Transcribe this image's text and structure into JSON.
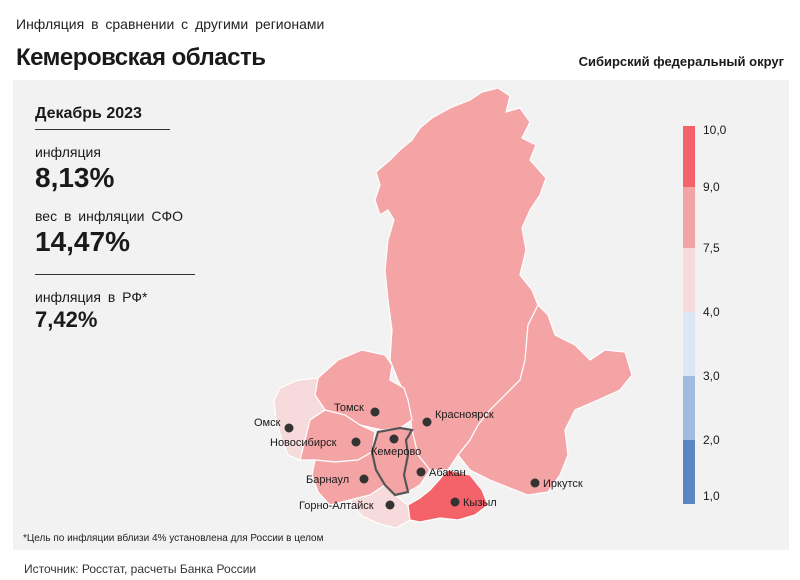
{
  "header": {
    "subtitle": "Инфляция  в сравнении  с другими  регионами",
    "title": "Кемеровская область",
    "district": "Сибирский федеральный округ"
  },
  "stats": {
    "period": "Декабрь 2023",
    "inflation_label": "инфляция",
    "inflation_value": "8,13%",
    "weight_label": "вес в инфляции  СФО",
    "weight_value": "14,47%",
    "rf_label": "инфляция  в РФ*",
    "rf_value": "7,42%"
  },
  "legend": {
    "ticks": [
      "10,0",
      "9,0",
      "7,5",
      "4,0",
      "3,0",
      "2,0",
      "1,0"
    ],
    "colors": [
      "#f4626a",
      "#f5a4a6",
      "#f7dadc",
      "#dde6f4",
      "#9fbbe0",
      "#5b86c2"
    ]
  },
  "cities": {
    "omsk": "Омск",
    "tomsk": "Томск",
    "novosibirsk": "Новосибирск",
    "kemerovo": "Кемерово",
    "krasnoyarsk": "Красноярск",
    "abakan": "Абакан",
    "barnaul": "Барнаул",
    "gorno_altaysk": "Горно-Алтайск",
    "kyzyl": "Кызыл",
    "irkutsk": "Иркутск"
  },
  "regions": {
    "krasnoyarsk_krai": "#f5a4a6",
    "irkutsk_oblast": "#f5a4a6",
    "tomsk_oblast": "#f5a4a6",
    "novosibirsk_oblast": "#f5a4a6",
    "omsk_oblast": "#f7dadc",
    "kemerovo_oblast": "#f5a4a6",
    "altai_krai": "#f5a4a6",
    "altai_republic": "#f7dadc",
    "khakassia": "#f5a4a6",
    "tyva": "#f4626a"
  },
  "footer": {
    "note": "*Цель по инфляции вблизи 4% установлена для России в целом",
    "source": "Источник: Росстат, расчеты Банка России"
  }
}
